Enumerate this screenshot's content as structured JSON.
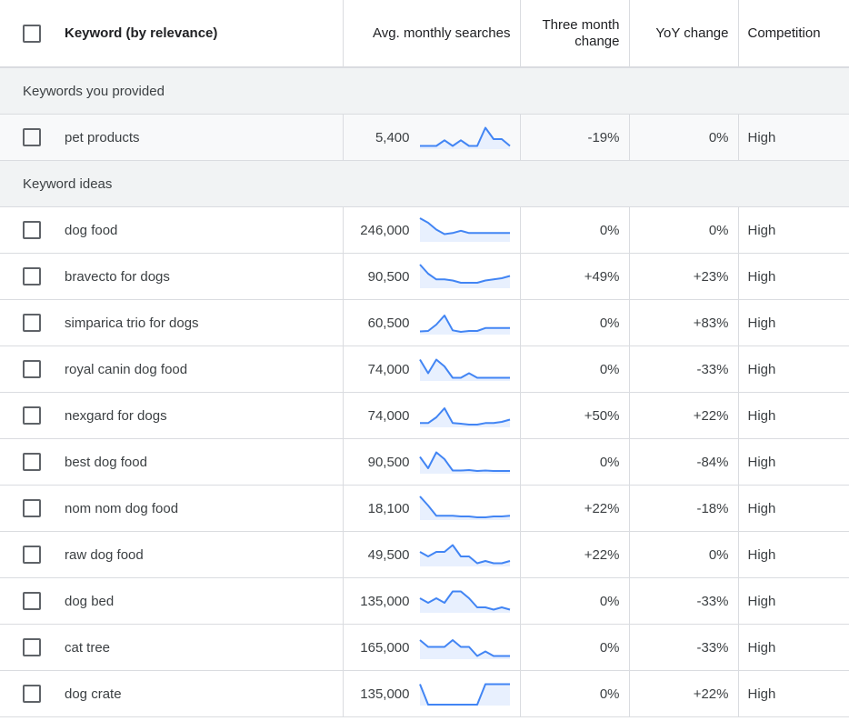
{
  "header": {
    "keyword": "Keyword (by relevance)",
    "avg_searches": "Avg. monthly searches",
    "three_month": "Three month change",
    "yoy": "YoY change",
    "competition": "Competition"
  },
  "colors": {
    "accent": "#4285f4",
    "spark_fill": "#e8f0fe",
    "group_bg": "#f1f3f4"
  },
  "groups": {
    "provided": {
      "label": "Keywords you provided",
      "rows": [
        {
          "keyword": "pet products",
          "searches": "5,400",
          "three_month": "-19%",
          "yoy": "0%",
          "competition": "High",
          "trend": [
            1,
            1,
            1,
            3.5,
            1,
            3.5,
            1,
            1,
            9,
            4,
            4,
            1
          ]
        }
      ]
    },
    "ideas": {
      "label": "Keyword ideas",
      "rows": [
        {
          "keyword": "dog food",
          "searches": "246,000",
          "three_month": "0%",
          "yoy": "0%",
          "competition": "High",
          "trend": [
            10,
            8,
            5,
            3,
            3.5,
            4.5,
            3.5,
            3.5,
            3.5,
            3.5,
            3.5,
            3.5
          ]
        },
        {
          "keyword": "bravecto for dogs",
          "searches": "90,500",
          "three_month": "+49%",
          "yoy": "+23%",
          "competition": "High",
          "trend": [
            10,
            6,
            3.5,
            3.5,
            3,
            2,
            2,
            2,
            3,
            3.5,
            4,
            5
          ]
        },
        {
          "keyword": "simparica trio for dogs",
          "searches": "60,500",
          "three_month": "0%",
          "yoy": "+83%",
          "competition": "High",
          "trend": [
            1,
            1.2,
            4,
            8,
            1.5,
            0.8,
            1.2,
            1.2,
            2.5,
            2.5,
            2.5,
            2.5
          ]
        },
        {
          "keyword": "royal canin dog food",
          "searches": "74,000",
          "three_month": "0%",
          "yoy": "-33%",
          "competition": "High",
          "trend": [
            9,
            3,
            9,
            6,
            1,
            1,
            3,
            1,
            1,
            1,
            1,
            1
          ]
        },
        {
          "keyword": "nexgard for dogs",
          "searches": "74,000",
          "three_month": "+50%",
          "yoy": "+22%",
          "competition": "High",
          "trend": [
            1.5,
            1.5,
            4,
            8,
            1.5,
            1.2,
            0.8,
            0.8,
            1.5,
            1.5,
            2,
            3
          ]
        },
        {
          "keyword": "best dog food",
          "searches": "90,500",
          "three_month": "0%",
          "yoy": "-84%",
          "competition": "High",
          "trend": [
            7,
            2,
            9,
            6,
            1,
            1,
            1.2,
            0.8,
            1,
            0.8,
            0.8,
            0.8
          ]
        },
        {
          "keyword": "nom nom dog food",
          "searches": "18,100",
          "three_month": "+22%",
          "yoy": "-18%",
          "competition": "High",
          "trend": [
            10,
            6,
            1.5,
            1.5,
            1.5,
            1.2,
            1.2,
            0.8,
            0.8,
            1.2,
            1.2,
            1.5
          ]
        },
        {
          "keyword": "raw dog food",
          "searches": "49,500",
          "three_month": "+22%",
          "yoy": "0%",
          "competition": "High",
          "trend": [
            6,
            4,
            6,
            6,
            9,
            4,
            4,
            1,
            2,
            1,
            1,
            2
          ]
        },
        {
          "keyword": "dog bed",
          "searches": "135,000",
          "three_month": "0%",
          "yoy": "-33%",
          "competition": "High",
          "trend": [
            6,
            4,
            6,
            4,
            9,
            9,
            6,
            2,
            2,
            1,
            2,
            1
          ]
        },
        {
          "keyword": "cat tree",
          "searches": "165,000",
          "three_month": "0%",
          "yoy": "-33%",
          "competition": "High",
          "trend": [
            8,
            5,
            5,
            5,
            8,
            5,
            5,
            1,
            3,
            1,
            1,
            1
          ]
        },
        {
          "keyword": "dog crate",
          "searches": "135,000",
          "three_month": "0%",
          "yoy": "+22%",
          "competition": "High",
          "trend": [
            9,
            0,
            0,
            0,
            0,
            0,
            0,
            0,
            9,
            9,
            9,
            9
          ]
        }
      ]
    }
  }
}
